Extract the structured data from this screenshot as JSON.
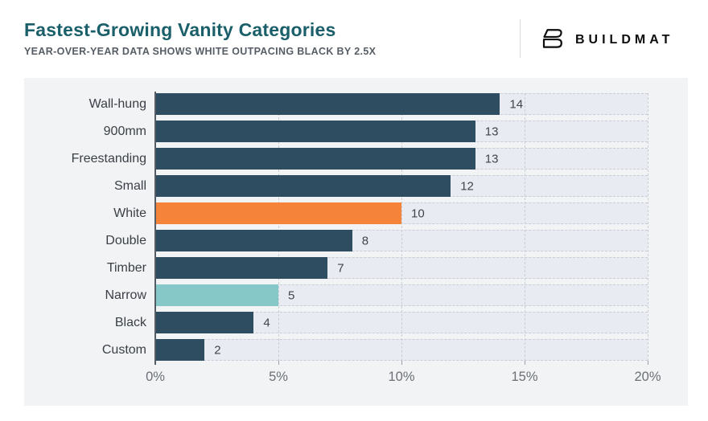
{
  "header": {
    "title": "Fastest-Growing Vanity Categories",
    "subtitle": "YEAR-OVER-YEAR DATA SHOWS WHITE OUTPACING BLACK BY 2.5X",
    "brand": "BUILDMAT"
  },
  "icons": {
    "brand_logo": "stylized-b-outline"
  },
  "colors": {
    "title": "#1a5f69",
    "subtitle": "#565d65",
    "navy": "#2f4d61",
    "orange": "#f6833a",
    "teal": "#86c7c8",
    "band_background": "#e9ebf3",
    "panel_background": "#f2f3f5",
    "gridline": "#c9cdd6"
  },
  "chart_data": {
    "type": "bar",
    "orientation": "horizontal",
    "title": "Fastest-Growing Vanity Categories",
    "subtitle": "YEAR-OVER-YEAR DATA SHOWS WHITE OUTPACING BLACK BY 2.5X",
    "categories": [
      "Wall-hung",
      "900mm",
      "Freestanding",
      "Small",
      "White",
      "Double",
      "Timber",
      "Narrow",
      "Black",
      "Custom"
    ],
    "values": [
      14,
      13,
      13,
      12,
      10,
      8,
      7,
      5,
      4,
      2
    ],
    "value_labels": [
      "14",
      "13",
      "13",
      "12",
      "10",
      "8",
      "7",
      "5",
      "4",
      "2"
    ],
    "bar_colors": [
      "navy",
      "navy",
      "navy",
      "navy",
      "orange",
      "navy",
      "navy",
      "teal",
      "navy",
      "navy"
    ],
    "xlim": [
      0,
      20
    ],
    "x_tick_labels": [
      "0%",
      "5%",
      "10%",
      "15%",
      "20%"
    ],
    "x_tick_positions_pct": [
      0,
      25,
      50,
      75,
      100
    ],
    "gridlines_pct": [
      25,
      50,
      75,
      100
    ],
    "grid": "vertical-dashed",
    "legend": "none"
  }
}
